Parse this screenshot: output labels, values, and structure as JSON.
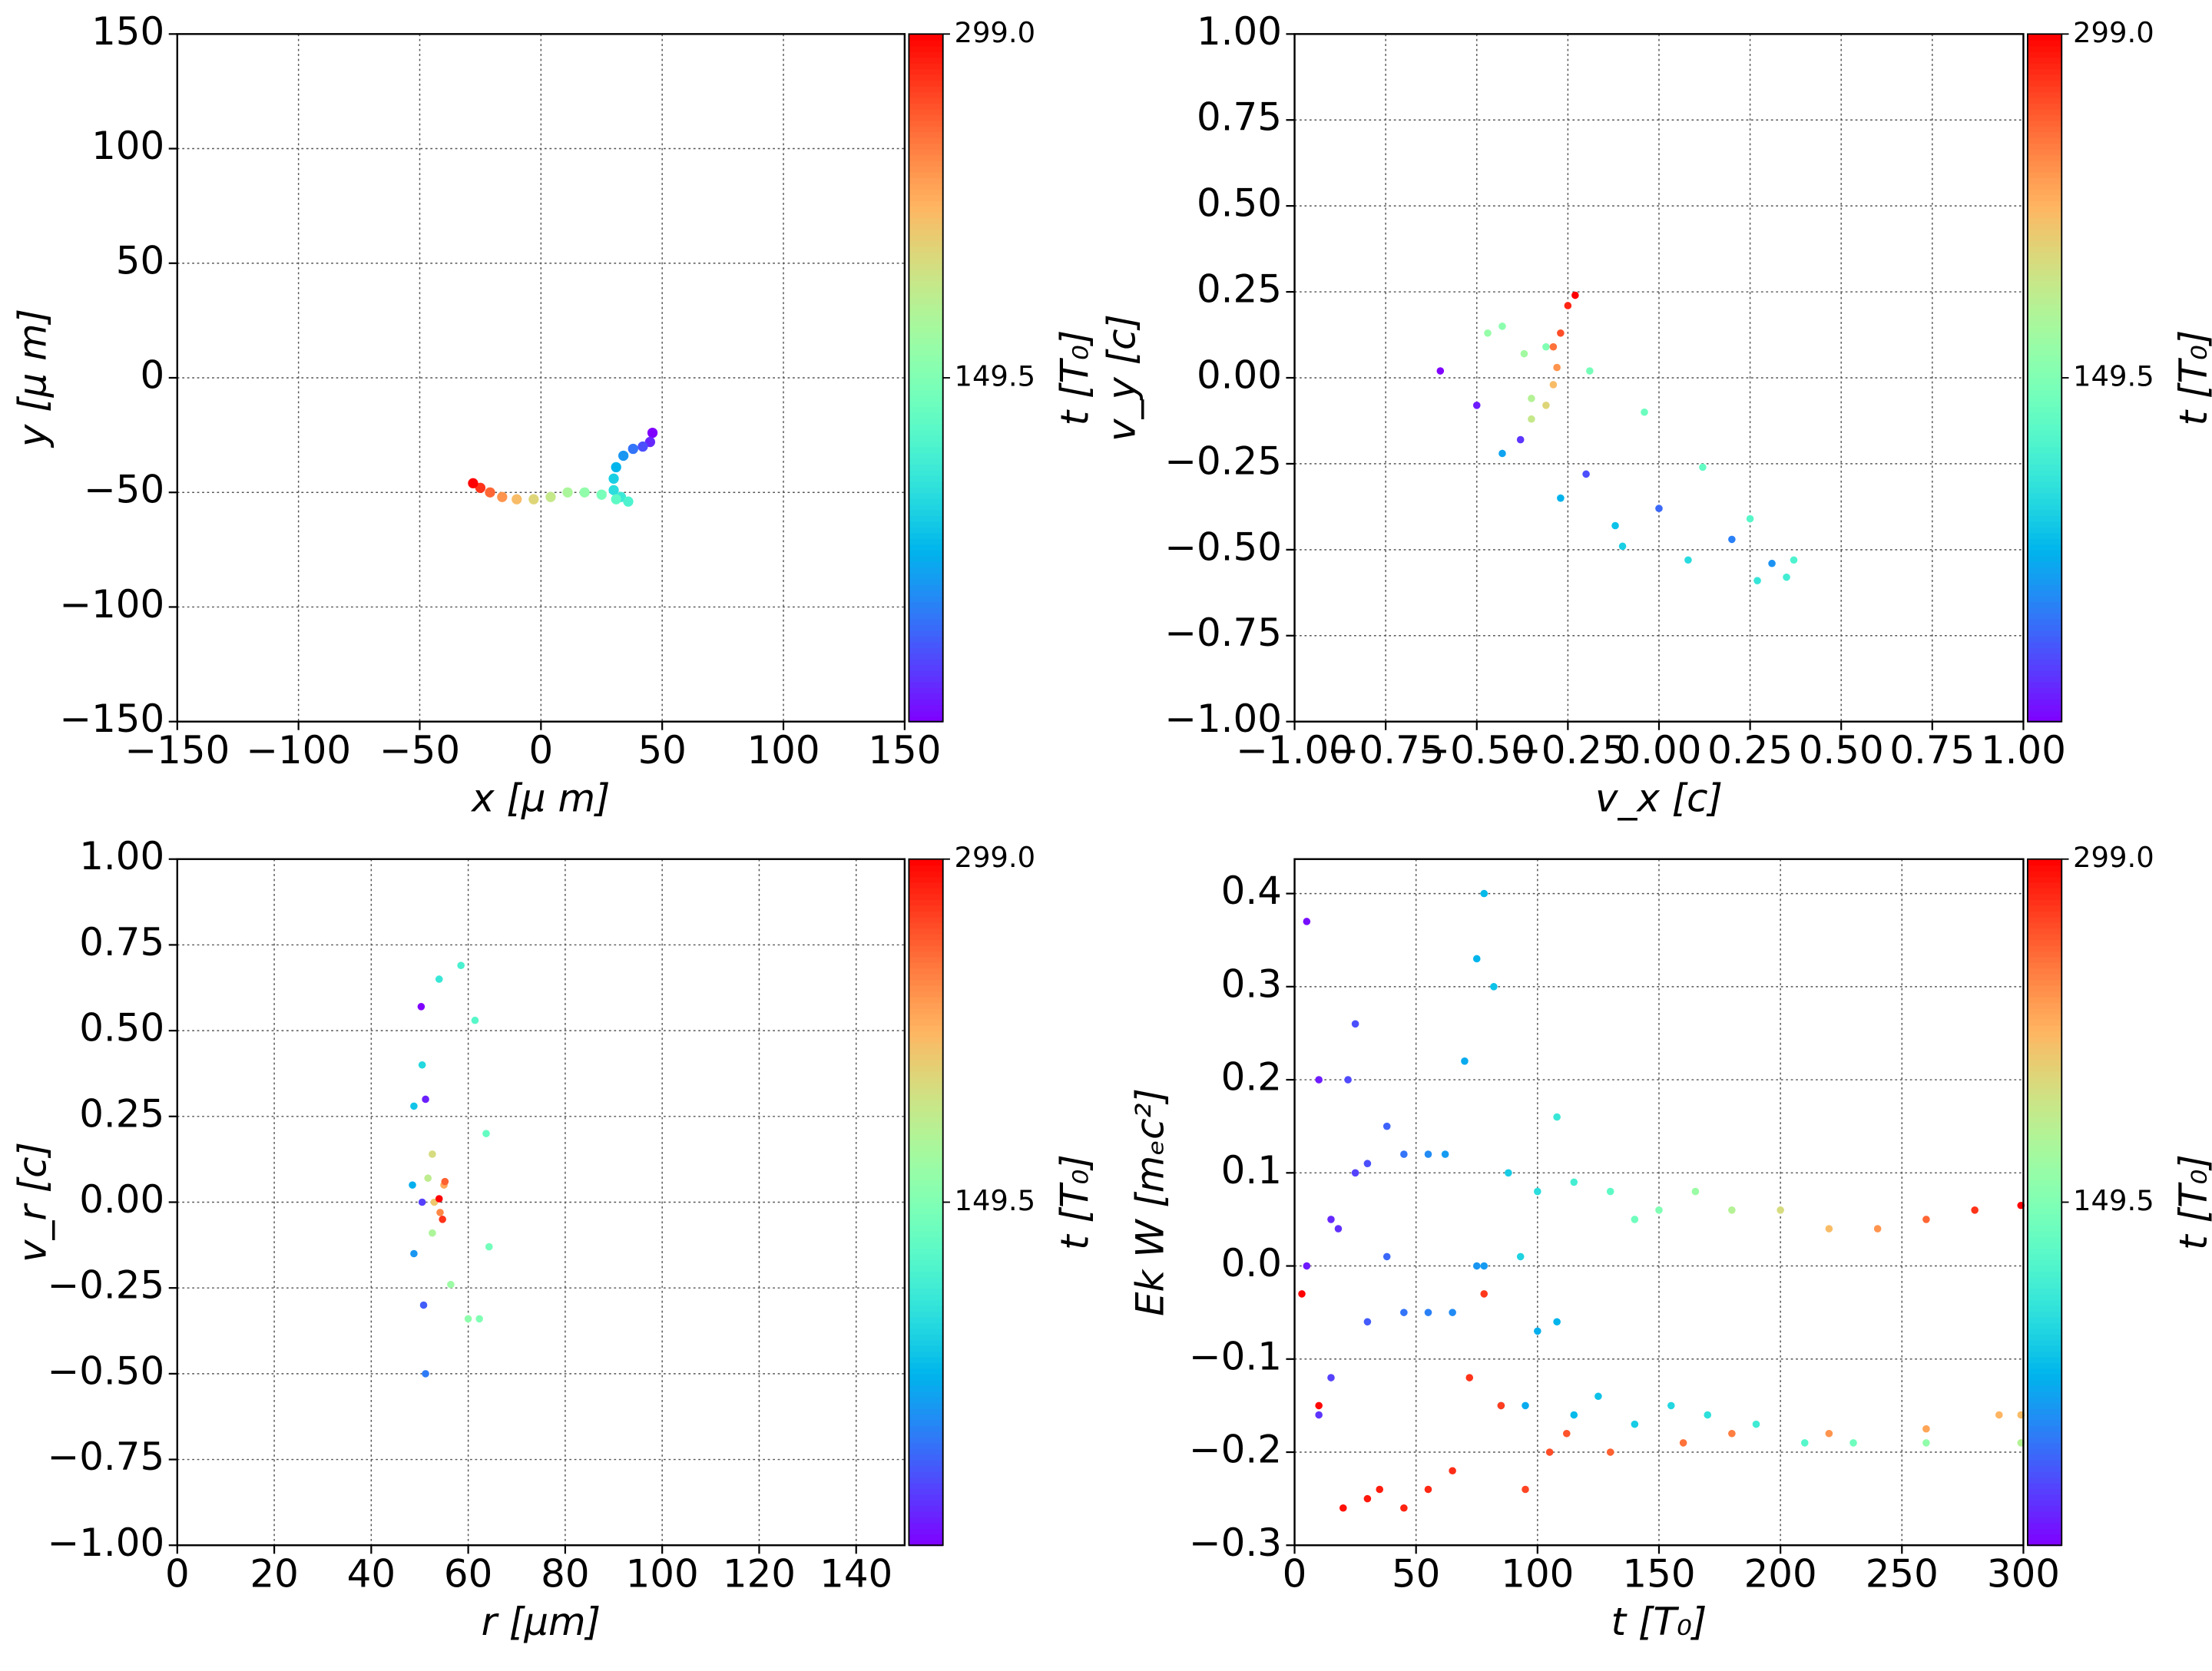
{
  "chart_data": [
    {
      "type": "scatter",
      "xlabel": "x  [μ m]",
      "ylabel": "y  [μ m]",
      "xlim": [
        -150,
        150
      ],
      "ylim": [
        -150,
        150
      ],
      "xticks": [
        {
          "value": -150,
          "label": "−150"
        },
        {
          "value": -100,
          "label": "−100"
        },
        {
          "value": -50,
          "label": "−50"
        },
        0,
        50,
        100,
        150
      ],
      "yticks": [
        {
          "value": -150,
          "label": "−150"
        },
        {
          "value": -100,
          "label": "−100"
        },
        {
          "value": -50,
          "label": "−50"
        },
        0,
        50,
        100,
        150
      ],
      "grid": true,
      "colormap": "rainbow",
      "colorbar": {
        "label": "t [T₀]",
        "lim": [
          0,
          299
        ],
        "ticks": [
          149.5,
          {
            "value": 299,
            "label": "299.0"
          }
        ]
      },
      "series": [
        {
          "x": [
            46,
            45,
            42,
            38,
            34,
            31,
            30,
            30,
            33,
            36,
            31,
            25,
            18,
            11,
            4,
            -3,
            -10,
            -16,
            -21,
            -25,
            -28
          ],
          "y": [
            -24,
            -28,
            -30,
            -31,
            -34,
            -39,
            -44,
            -49,
            -52,
            -54,
            -53,
            -51,
            -50,
            -50,
            -52,
            -53,
            -53,
            -52,
            -50,
            -48,
            -46
          ],
          "c": [
            0,
            15,
            30,
            45,
            60,
            75,
            90,
            100,
            110,
            120,
            130,
            145,
            160,
            175,
            190,
            205,
            220,
            240,
            260,
            280,
            299
          ]
        }
      ]
    },
    {
      "type": "scatter",
      "xlabel": "v_x [c]",
      "ylabel": "v_y [c]",
      "xlim": [
        -1,
        1
      ],
      "ylim": [
        -1,
        1
      ],
      "xticks": [
        {
          "value": -1,
          "label": "−1.00"
        },
        {
          "value": -0.75,
          "label": "−0.75"
        },
        {
          "value": -0.5,
          "label": "−0.50"
        },
        {
          "value": -0.25,
          "label": "−0.25"
        },
        {
          "value": 0,
          "label": "0.00"
        },
        {
          "value": 0.25,
          "label": "0.25"
        },
        {
          "value": 0.5,
          "label": "0.50"
        },
        {
          "value": 0.75,
          "label": "0.75"
        },
        {
          "value": 1,
          "label": "1.00"
        }
      ],
      "yticks": [
        {
          "value": -1,
          "label": "−1.00"
        },
        {
          "value": -0.75,
          "label": "−0.75"
        },
        {
          "value": -0.5,
          "label": "−0.50"
        },
        {
          "value": -0.25,
          "label": "−0.25"
        },
        {
          "value": 0,
          "label": "0.00"
        },
        {
          "value": 0.25,
          "label": "0.25"
        },
        {
          "value": 0.5,
          "label": "0.50"
        },
        {
          "value": 0.75,
          "label": "0.75"
        },
        {
          "value": 1,
          "label": "1.00"
        }
      ],
      "grid": true,
      "colormap": "rainbow",
      "colorbar": {
        "label": "t [T₀]",
        "lim": [
          0,
          299
        ],
        "ticks": [
          149.5,
          {
            "value": 299,
            "label": "299.0"
          }
        ]
      },
      "series": [
        {
          "x": [
            -0.6,
            -0.5,
            -0.38,
            -0.2,
            0,
            0.2,
            0.31,
            -0.43,
            -0.27,
            -0.12,
            -0.1,
            0.08,
            0.27,
            0.35,
            0.37,
            0.25,
            0.12,
            -0.04,
            -0.19,
            -0.31,
            -0.43,
            -0.47,
            -0.37,
            -0.35,
            -0.35,
            -0.31,
            -0.29,
            -0.28,
            -0.29,
            -0.27,
            -0.25,
            -0.23
          ],
          "y": [
            0.02,
            -0.08,
            -0.18,
            -0.28,
            -0.38,
            -0.47,
            -0.54,
            -0.22,
            -0.35,
            -0.43,
            -0.49,
            -0.53,
            -0.59,
            -0.58,
            -0.53,
            -0.41,
            -0.26,
            -0.1,
            0.02,
            0.09,
            0.15,
            0.13,
            0.07,
            -0.06,
            -0.12,
            -0.08,
            -0.02,
            0.03,
            0.09,
            0.13,
            0.21,
            0.24
          ],
          "c": [
            0,
            10,
            20,
            30,
            40,
            50,
            58,
            66,
            74,
            82,
            90,
            98,
            106,
            114,
            120,
            126,
            132,
            138,
            144,
            150,
            156,
            162,
            170,
            180,
            190,
            205,
            220,
            240,
            255,
            270,
            285,
            299
          ]
        }
      ]
    },
    {
      "type": "scatter",
      "xlabel": "r [μm]",
      "ylabel": "v_r [c]",
      "xlim": [
        0,
        150
      ],
      "ylim": [
        -1,
        1
      ],
      "xticks": [
        0,
        20,
        40,
        60,
        80,
        100,
        120,
        140
      ],
      "yticks": [
        {
          "value": -1,
          "label": "−1.00"
        },
        {
          "value": -0.75,
          "label": "−0.75"
        },
        {
          "value": -0.5,
          "label": "−0.50"
        },
        {
          "value": -0.25,
          "label": "−0.25"
        },
        {
          "value": 0,
          "label": "0.00"
        },
        {
          "value": 0.25,
          "label": "0.25"
        },
        {
          "value": 0.5,
          "label": "0.50"
        },
        {
          "value": 0.75,
          "label": "0.75"
        },
        {
          "value": 1,
          "label": "1.00"
        }
      ],
      "grid": true,
      "colormap": "rainbow",
      "colorbar": {
        "label": "t [T₀]",
        "lim": [
          0,
          299
        ],
        "ticks": [
          149.5,
          {
            "value": 299,
            "label": "299.0"
          }
        ]
      },
      "series": [
        {
          "x": [
            50.3,
            51.2,
            50.5,
            50.8,
            51.2,
            48.8,
            48.5,
            48.8,
            50.5,
            54,
            58.5,
            61.4,
            63.7,
            64.3,
            62.3,
            60,
            56.4,
            52.6,
            51.7,
            52.6,
            53,
            55,
            54.2,
            55.2,
            54.7,
            54
          ],
          "y": [
            0.57,
            0.3,
            0,
            -0.3,
            -0.5,
            -0.15,
            0.05,
            0.28,
            0.4,
            0.65,
            0.69,
            0.53,
            0.2,
            -0.13,
            -0.34,
            -0.34,
            -0.24,
            -0.09,
            0.07,
            0.14,
            0,
            0.05,
            -0.03,
            0.06,
            -0.05,
            0.01
          ],
          "c": [
            0,
            12,
            24,
            36,
            48,
            60,
            72,
            84,
            96,
            108,
            118,
            126,
            134,
            142,
            150,
            158,
            166,
            176,
            186,
            200,
            214,
            230,
            246,
            262,
            280,
            299
          ]
        }
      ]
    },
    {
      "type": "scatter",
      "xlabel": "t [T₀]",
      "ylabel": "Ek W [mₑc²]",
      "xlim": [
        0,
        300
      ],
      "ylim": [
        -0.3,
        0.437
      ],
      "xticks": [
        0,
        50,
        100,
        150,
        200,
        250,
        300
      ],
      "yticks": [
        {
          "value": -0.3,
          "label": "−0.3"
        },
        {
          "value": -0.2,
          "label": "−0.2"
        },
        {
          "value": -0.1,
          "label": "−0.1"
        },
        {
          "value": 0,
          "label": "0.0"
        },
        0.1,
        0.2,
        0.3,
        0.4
      ],
      "grid": true,
      "colormap": "rainbow",
      "colorbar": {
        "label": "t [T₀]",
        "lim": [
          0,
          299
        ],
        "ticks": [
          149.5,
          {
            "value": 299,
            "label": "299.0"
          }
        ]
      },
      "series": [
        {
          "x": [
            5,
            10,
            15,
            18,
            25,
            30,
            38,
            45,
            55,
            62,
            70,
            75,
            78,
            82,
            88,
            93,
            100,
            108,
            115,
            130,
            140,
            150,
            165,
            180,
            200,
            220,
            240,
            260,
            280,
            299
          ],
          "y": [
            0.37,
            0.2,
            0.05,
            0.04,
            0.1,
            0.11,
            0.15,
            0.12,
            0.12,
            0.12,
            0.22,
            0.33,
            0.4,
            0.3,
            0.1,
            0.01,
            0.08,
            0.16,
            0.09,
            0.08,
            0.05,
            0.06,
            0.08,
            0.06,
            0.06,
            0.04,
            0.04,
            0.05,
            0.06,
            0.065
          ],
          "c": [
            5,
            10,
            15,
            18,
            25,
            30,
            38,
            45,
            55,
            62,
            70,
            75,
            78,
            82,
            88,
            93,
            100,
            108,
            115,
            130,
            140,
            150,
            165,
            180,
            200,
            220,
            240,
            260,
            280,
            299
          ]
        },
        {
          "x": [
            5,
            10,
            15,
            22,
            25,
            30,
            38,
            45,
            55,
            65,
            75,
            78,
            85,
            95,
            100,
            108,
            115,
            125,
            140,
            155,
            170,
            190,
            210,
            230,
            260,
            299
          ],
          "y": [
            0,
            -0.16,
            -0.12,
            0.2,
            0.26,
            -0.06,
            0.01,
            -0.05,
            -0.05,
            -0.05,
            0,
            0,
            -0.15,
            -0.15,
            -0.07,
            -0.06,
            -0.16,
            -0.14,
            -0.17,
            -0.15,
            -0.16,
            -0.17,
            -0.19,
            -0.19,
            -0.19,
            -0.19
          ],
          "c": [
            10,
            20,
            25,
            28,
            30,
            35,
            40,
            45,
            50,
            55,
            60,
            62,
            66,
            70,
            72,
            75,
            78,
            82,
            88,
            95,
            102,
            112,
            125,
            140,
            160,
            180
          ]
        },
        {
          "x": [
            3,
            10,
            20,
            30,
            35,
            45,
            55,
            65,
            72,
            78,
            85,
            95,
            105,
            112,
            130,
            160,
            180,
            220,
            260,
            290,
            299
          ],
          "y": [
            -0.03,
            -0.15,
            -0.26,
            -0.25,
            -0.24,
            -0.26,
            -0.24,
            -0.22,
            -0.12,
            -0.03,
            -0.15,
            -0.24,
            -0.2,
            -0.18,
            -0.2,
            -0.19,
            -0.18,
            -0.18,
            -0.175,
            -0.16,
            -0.16
          ],
          "c": [
            299,
            296,
            293,
            290,
            288,
            286,
            284,
            282,
            280,
            278,
            276,
            273,
            270,
            267,
            262,
            255,
            250,
            240,
            232,
            224,
            220
          ]
        }
      ]
    }
  ]
}
